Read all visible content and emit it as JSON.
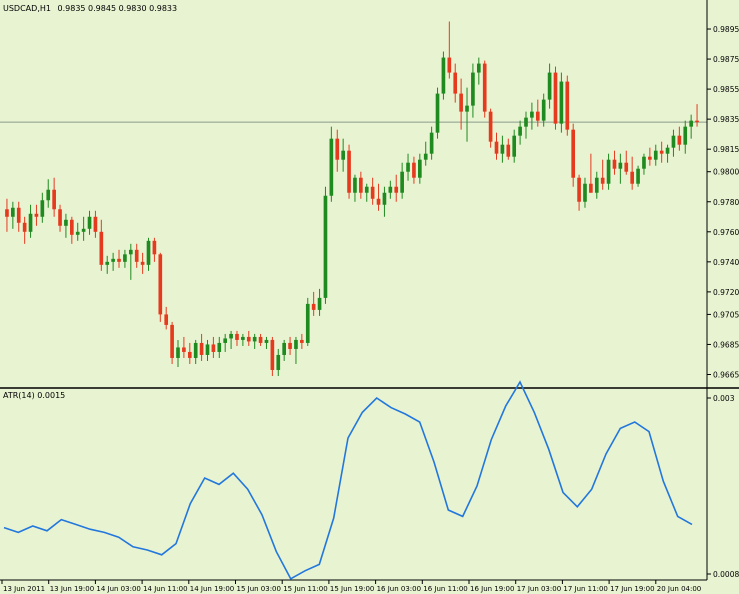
{
  "header": {
    "symbol": "USDCAD,H1",
    "ohlc": "0.9835 0.9845 0.9830 0.9833"
  },
  "indicator": {
    "label": "ATR(14) 0.0015"
  },
  "colors": {
    "background": "#e8f3d2",
    "bull": "#1f8a1f",
    "bear": "#e63a1e",
    "wick": "#555555",
    "atr_line": "#2277dd",
    "price_line": "#8a9a8a",
    "price_tag_bg": "#000000",
    "price_tag_fg": "#ffffff",
    "frame": "#000000"
  },
  "chart_data": [
    {
      "type": "candlestick",
      "title": "USDCAD,H1",
      "price_scale_labels": [
        "0.9895",
        "0.9875",
        "0.9855",
        "0.9835",
        "0.9815",
        "0.9800",
        "0.9780",
        "0.9760",
        "0.9740",
        "0.9720",
        "0.9705",
        "0.9685",
        "0.9665"
      ],
      "current_price": "0.9833",
      "ylim": [
        0.966,
        0.9905
      ],
      "grid": false,
      "candles": [
        {
          "o": 0.9775,
          "h": 0.9782,
          "l": 0.976,
          "c": 0.977
        },
        {
          "o": 0.977,
          "h": 0.978,
          "l": 0.9762,
          "c": 0.9776
        },
        {
          "o": 0.9776,
          "h": 0.978,
          "l": 0.976,
          "c": 0.9766
        },
        {
          "o": 0.9766,
          "h": 0.977,
          "l": 0.9752,
          "c": 0.976
        },
        {
          "o": 0.976,
          "h": 0.9778,
          "l": 0.9756,
          "c": 0.9772
        },
        {
          "o": 0.9772,
          "h": 0.9778,
          "l": 0.9764,
          "c": 0.977
        },
        {
          "o": 0.977,
          "h": 0.9786,
          "l": 0.9766,
          "c": 0.9781
        },
        {
          "o": 0.9781,
          "h": 0.9795,
          "l": 0.9776,
          "c": 0.9788
        },
        {
          "o": 0.9788,
          "h": 0.9796,
          "l": 0.977,
          "c": 0.9775
        },
        {
          "o": 0.9775,
          "h": 0.9778,
          "l": 0.976,
          "c": 0.9764
        },
        {
          "o": 0.9764,
          "h": 0.9772,
          "l": 0.9756,
          "c": 0.9768
        },
        {
          "o": 0.9768,
          "h": 0.977,
          "l": 0.9752,
          "c": 0.9758
        },
        {
          "o": 0.9758,
          "h": 0.9766,
          "l": 0.9754,
          "c": 0.976
        },
        {
          "o": 0.976,
          "h": 0.977,
          "l": 0.9754,
          "c": 0.9762
        },
        {
          "o": 0.9762,
          "h": 0.9774,
          "l": 0.9758,
          "c": 0.977
        },
        {
          "o": 0.977,
          "h": 0.9774,
          "l": 0.9756,
          "c": 0.976
        },
        {
          "o": 0.976,
          "h": 0.9768,
          "l": 0.9734,
          "c": 0.9738
        },
        {
          "o": 0.9738,
          "h": 0.9744,
          "l": 0.9732,
          "c": 0.974
        },
        {
          "o": 0.974,
          "h": 0.9746,
          "l": 0.9734,
          "c": 0.9742
        },
        {
          "o": 0.9742,
          "h": 0.9748,
          "l": 0.9736,
          "c": 0.974
        },
        {
          "o": 0.974,
          "h": 0.9748,
          "l": 0.9736,
          "c": 0.9745
        },
        {
          "o": 0.9745,
          "h": 0.9752,
          "l": 0.9728,
          "c": 0.9748
        },
        {
          "o": 0.9748,
          "h": 0.9752,
          "l": 0.9736,
          "c": 0.974
        },
        {
          "o": 0.974,
          "h": 0.9746,
          "l": 0.9732,
          "c": 0.9738
        },
        {
          "o": 0.9738,
          "h": 0.9756,
          "l": 0.9734,
          "c": 0.9754
        },
        {
          "o": 0.9754,
          "h": 0.9756,
          "l": 0.974,
          "c": 0.9745
        },
        {
          "o": 0.9745,
          "h": 0.9746,
          "l": 0.97,
          "c": 0.9705
        },
        {
          "o": 0.9705,
          "h": 0.971,
          "l": 0.9695,
          "c": 0.9698
        },
        {
          "o": 0.9698,
          "h": 0.97,
          "l": 0.9672,
          "c": 0.9676
        },
        {
          "o": 0.9676,
          "h": 0.9688,
          "l": 0.967,
          "c": 0.9683
        },
        {
          "o": 0.9683,
          "h": 0.969,
          "l": 0.9676,
          "c": 0.968
        },
        {
          "o": 0.968,
          "h": 0.9686,
          "l": 0.9672,
          "c": 0.9676
        },
        {
          "o": 0.9676,
          "h": 0.9688,
          "l": 0.9672,
          "c": 0.9686
        },
        {
          "o": 0.9686,
          "h": 0.9692,
          "l": 0.9674,
          "c": 0.9678
        },
        {
          "o": 0.9678,
          "h": 0.9688,
          "l": 0.9674,
          "c": 0.9685
        },
        {
          "o": 0.9685,
          "h": 0.969,
          "l": 0.9676,
          "c": 0.968
        },
        {
          "o": 0.968,
          "h": 0.969,
          "l": 0.9676,
          "c": 0.9686
        },
        {
          "o": 0.9686,
          "h": 0.9692,
          "l": 0.968,
          "c": 0.9689
        },
        {
          "o": 0.9689,
          "h": 0.9694,
          "l": 0.9682,
          "c": 0.9692
        },
        {
          "o": 0.9692,
          "h": 0.9694,
          "l": 0.9684,
          "c": 0.9688
        },
        {
          "o": 0.9688,
          "h": 0.9692,
          "l": 0.9684,
          "c": 0.969
        },
        {
          "o": 0.969,
          "h": 0.9694,
          "l": 0.9684,
          "c": 0.9687
        },
        {
          "o": 0.9687,
          "h": 0.9692,
          "l": 0.9682,
          "c": 0.969
        },
        {
          "o": 0.969,
          "h": 0.9692,
          "l": 0.9684,
          "c": 0.9686
        },
        {
          "o": 0.9686,
          "h": 0.969,
          "l": 0.9682,
          "c": 0.9688
        },
        {
          "o": 0.9688,
          "h": 0.969,
          "l": 0.9664,
          "c": 0.9668
        },
        {
          "o": 0.9668,
          "h": 0.9682,
          "l": 0.9664,
          "c": 0.9678
        },
        {
          "o": 0.9678,
          "h": 0.9688,
          "l": 0.9674,
          "c": 0.9686
        },
        {
          "o": 0.9686,
          "h": 0.969,
          "l": 0.9678,
          "c": 0.9682
        },
        {
          "o": 0.9682,
          "h": 0.969,
          "l": 0.9672,
          "c": 0.9688
        },
        {
          "o": 0.9688,
          "h": 0.9692,
          "l": 0.9682,
          "c": 0.9686
        },
        {
          "o": 0.9686,
          "h": 0.9716,
          "l": 0.9684,
          "c": 0.9712
        },
        {
          "o": 0.9712,
          "h": 0.972,
          "l": 0.9704,
          "c": 0.9708
        },
        {
          "o": 0.9708,
          "h": 0.9722,
          "l": 0.9704,
          "c": 0.9716
        },
        {
          "o": 0.9716,
          "h": 0.979,
          "l": 0.9712,
          "c": 0.9784
        },
        {
          "o": 0.9784,
          "h": 0.983,
          "l": 0.978,
          "c": 0.9822
        },
        {
          "o": 0.9822,
          "h": 0.9828,
          "l": 0.98,
          "c": 0.9808
        },
        {
          "o": 0.9808,
          "h": 0.9822,
          "l": 0.98,
          "c": 0.9814
        },
        {
          "o": 0.9814,
          "h": 0.9818,
          "l": 0.9782,
          "c": 0.9786
        },
        {
          "o": 0.9786,
          "h": 0.9798,
          "l": 0.978,
          "c": 0.9796
        },
        {
          "o": 0.9796,
          "h": 0.98,
          "l": 0.9782,
          "c": 0.9786
        },
        {
          "o": 0.9786,
          "h": 0.9792,
          "l": 0.978,
          "c": 0.979
        },
        {
          "o": 0.979,
          "h": 0.9796,
          "l": 0.9778,
          "c": 0.9782
        },
        {
          "o": 0.9782,
          "h": 0.9792,
          "l": 0.9774,
          "c": 0.9778
        },
        {
          "o": 0.9778,
          "h": 0.979,
          "l": 0.977,
          "c": 0.9786
        },
        {
          "o": 0.9786,
          "h": 0.9794,
          "l": 0.9782,
          "c": 0.979
        },
        {
          "o": 0.979,
          "h": 0.9798,
          "l": 0.978,
          "c": 0.9786
        },
        {
          "o": 0.9786,
          "h": 0.9806,
          "l": 0.9782,
          "c": 0.98
        },
        {
          "o": 0.98,
          "h": 0.9812,
          "l": 0.9794,
          "c": 0.9806
        },
        {
          "o": 0.9806,
          "h": 0.981,
          "l": 0.9792,
          "c": 0.9796
        },
        {
          "o": 0.9796,
          "h": 0.9812,
          "l": 0.9792,
          "c": 0.9808
        },
        {
          "o": 0.9808,
          "h": 0.982,
          "l": 0.9804,
          "c": 0.9812
        },
        {
          "o": 0.9812,
          "h": 0.983,
          "l": 0.9808,
          "c": 0.9826
        },
        {
          "o": 0.9826,
          "h": 0.9856,
          "l": 0.9822,
          "c": 0.9852
        },
        {
          "o": 0.9852,
          "h": 0.988,
          "l": 0.9848,
          "c": 0.9876
        },
        {
          "o": 0.9876,
          "h": 0.99,
          "l": 0.9862,
          "c": 0.9866
        },
        {
          "o": 0.9866,
          "h": 0.9872,
          "l": 0.9846,
          "c": 0.9852
        },
        {
          "o": 0.9852,
          "h": 0.9862,
          "l": 0.9828,
          "c": 0.984
        },
        {
          "o": 0.984,
          "h": 0.9856,
          "l": 0.982,
          "c": 0.9844
        },
        {
          "o": 0.9844,
          "h": 0.9872,
          "l": 0.9836,
          "c": 0.9866
        },
        {
          "o": 0.9866,
          "h": 0.9876,
          "l": 0.9858,
          "c": 0.9872
        },
        {
          "o": 0.9872,
          "h": 0.9874,
          "l": 0.9836,
          "c": 0.984
        },
        {
          "o": 0.984,
          "h": 0.9842,
          "l": 0.9816,
          "c": 0.982
        },
        {
          "o": 0.982,
          "h": 0.9826,
          "l": 0.9808,
          "c": 0.9812
        },
        {
          "o": 0.9812,
          "h": 0.9824,
          "l": 0.9806,
          "c": 0.9818
        },
        {
          "o": 0.9818,
          "h": 0.9822,
          "l": 0.9808,
          "c": 0.981
        },
        {
          "o": 0.981,
          "h": 0.9828,
          "l": 0.9806,
          "c": 0.9824
        },
        {
          "o": 0.9824,
          "h": 0.9834,
          "l": 0.9818,
          "c": 0.983
        },
        {
          "o": 0.983,
          "h": 0.984,
          "l": 0.9822,
          "c": 0.9836
        },
        {
          "o": 0.9836,
          "h": 0.9846,
          "l": 0.9828,
          "c": 0.984
        },
        {
          "o": 0.984,
          "h": 0.9848,
          "l": 0.983,
          "c": 0.9834
        },
        {
          "o": 0.9834,
          "h": 0.9852,
          "l": 0.983,
          "c": 0.9848
        },
        {
          "o": 0.9848,
          "h": 0.9872,
          "l": 0.9842,
          "c": 0.9866
        },
        {
          "o": 0.9866,
          "h": 0.987,
          "l": 0.9828,
          "c": 0.9832
        },
        {
          "o": 0.9832,
          "h": 0.9866,
          "l": 0.9826,
          "c": 0.986
        },
        {
          "o": 0.986,
          "h": 0.9864,
          "l": 0.9824,
          "c": 0.9828
        },
        {
          "o": 0.9828,
          "h": 0.9832,
          "l": 0.979,
          "c": 0.9796
        },
        {
          "o": 0.9796,
          "h": 0.9798,
          "l": 0.9774,
          "c": 0.978
        },
        {
          "o": 0.978,
          "h": 0.9796,
          "l": 0.9776,
          "c": 0.9792
        },
        {
          "o": 0.9792,
          "h": 0.9812,
          "l": 0.9786,
          "c": 0.9786
        },
        {
          "o": 0.9786,
          "h": 0.98,
          "l": 0.9782,
          "c": 0.9796
        },
        {
          "o": 0.9796,
          "h": 0.9808,
          "l": 0.9788,
          "c": 0.9792
        },
        {
          "o": 0.9792,
          "h": 0.9812,
          "l": 0.9788,
          "c": 0.9808
        },
        {
          "o": 0.9808,
          "h": 0.9814,
          "l": 0.9798,
          "c": 0.9802
        },
        {
          "o": 0.9802,
          "h": 0.9812,
          "l": 0.9792,
          "c": 0.9806
        },
        {
          "o": 0.9806,
          "h": 0.9814,
          "l": 0.9798,
          "c": 0.98
        },
        {
          "o": 0.98,
          "h": 0.981,
          "l": 0.9788,
          "c": 0.9792
        },
        {
          "o": 0.9792,
          "h": 0.9804,
          "l": 0.979,
          "c": 0.9802
        },
        {
          "o": 0.9802,
          "h": 0.9812,
          "l": 0.9798,
          "c": 0.981
        },
        {
          "o": 0.981,
          "h": 0.9816,
          "l": 0.9804,
          "c": 0.9808
        },
        {
          "o": 0.9808,
          "h": 0.9818,
          "l": 0.9804,
          "c": 0.9814
        },
        {
          "o": 0.9814,
          "h": 0.982,
          "l": 0.9806,
          "c": 0.9812
        },
        {
          "o": 0.9812,
          "h": 0.9818,
          "l": 0.9806,
          "c": 0.9816
        },
        {
          "o": 0.9816,
          "h": 0.9828,
          "l": 0.981,
          "c": 0.9824
        },
        {
          "o": 0.9824,
          "h": 0.983,
          "l": 0.9814,
          "c": 0.9818
        },
        {
          "o": 0.9818,
          "h": 0.9834,
          "l": 0.9812,
          "c": 0.983
        },
        {
          "o": 0.983,
          "h": 0.9838,
          "l": 0.9822,
          "c": 0.9834
        },
        {
          "o": 0.9834,
          "h": 0.9845,
          "l": 0.983,
          "c": 0.9833
        }
      ],
      "date_labels": [
        "13 Jun 2011",
        "13 Jun 19:00",
        "14 Jun 03:00",
        "14 Jun 11:00",
        "14 Jun 19:00",
        "15 Jun 03:00",
        "15 Jun 11:00",
        "15 Jun 19:00",
        "16 Jun 03:00",
        "16 Jun 11:00",
        "16 Jun 19:00",
        "17 Jun 03:00",
        "17 Jun 11:00",
        "17 Jun 19:00",
        "20 Jun 04:00"
      ]
    },
    {
      "type": "line",
      "title": "ATR(14) 0.0015",
      "series": [
        {
          "name": "ATR(14)",
          "values": [
            0.00138,
            0.00132,
            0.0014,
            0.00134,
            0.00148,
            0.00142,
            0.00136,
            0.00132,
            0.00126,
            0.00114,
            0.0011,
            0.00104,
            0.00118,
            0.00168,
            0.002,
            0.00192,
            0.00206,
            0.00186,
            0.00154,
            0.00108,
            0.00074,
            0.00084,
            0.00092,
            0.0015,
            0.0025,
            0.00282,
            0.003,
            0.00288,
            0.0028,
            0.0027,
            0.0022,
            0.0016,
            0.00152,
            0.0019,
            0.00248,
            0.0029,
            0.0032,
            0.00282,
            0.00236,
            0.00182,
            0.00164,
            0.00186,
            0.0023,
            0.00262,
            0.0027,
            0.00258,
            0.00196,
            0.00152,
            0.00142
          ]
        }
      ],
      "y_scale_labels": [
        "0.003",
        "0.0008"
      ],
      "ylim": [
        0.0008,
        0.003
      ]
    }
  ]
}
